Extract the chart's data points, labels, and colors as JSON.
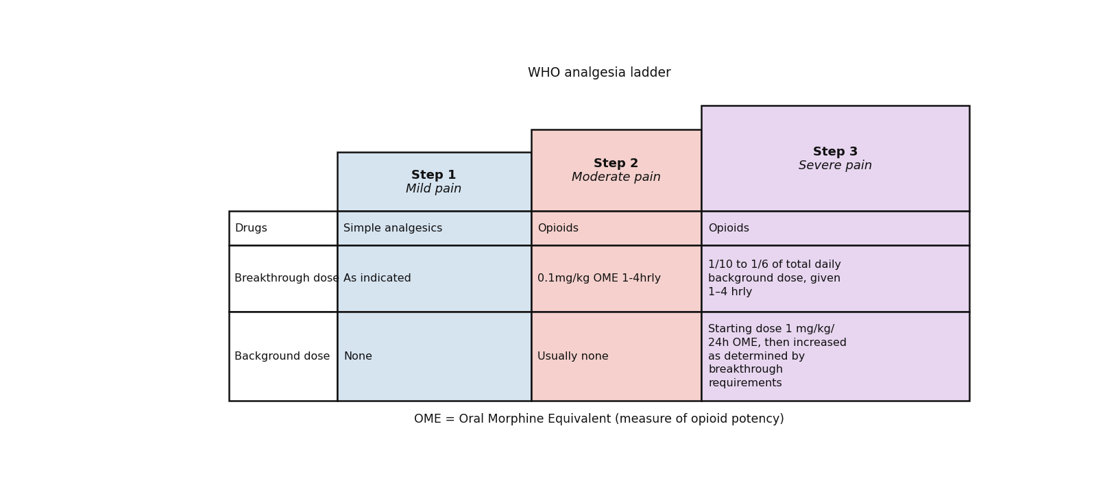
{
  "title": "WHO analgesia ladder",
  "footer": "OME = Oral Morphine Equivalent (measure of opioid potency)",
  "title_fontsize": 13.5,
  "footer_fontsize": 12.5,
  "step_colors": [
    "#d6e4f0",
    "#f5d0cc",
    "#e8d6f0"
  ],
  "step_headers": [
    "Step 1",
    "Step 2",
    "Step 3"
  ],
  "step_subheaders": [
    "Mild pain",
    "Moderate pain",
    "Severe pain"
  ],
  "row_labels": [
    "Drugs",
    "Breakthrough dose",
    "Background dose"
  ],
  "cell_data": [
    [
      "Simple analgesics",
      "Opioids",
      "Opioids"
    ],
    [
      "As indicated",
      "0.1mg/kg OME 1-4hrly",
      "1/10 to 1/6 of total daily\nbackground dose, given\n1–4 hrly"
    ],
    [
      "None",
      "Usually none",
      "Starting dose 1 mg/kg/\n24h OME, then increased\nas determined by\nbreakthrough\nrequirements"
    ]
  ],
  "border_color": "#111111",
  "text_color": "#111111",
  "header_fontsize": 13,
  "cell_fontsize": 11.5,
  "row_label_fontsize": 11.5,
  "lw": 1.8
}
